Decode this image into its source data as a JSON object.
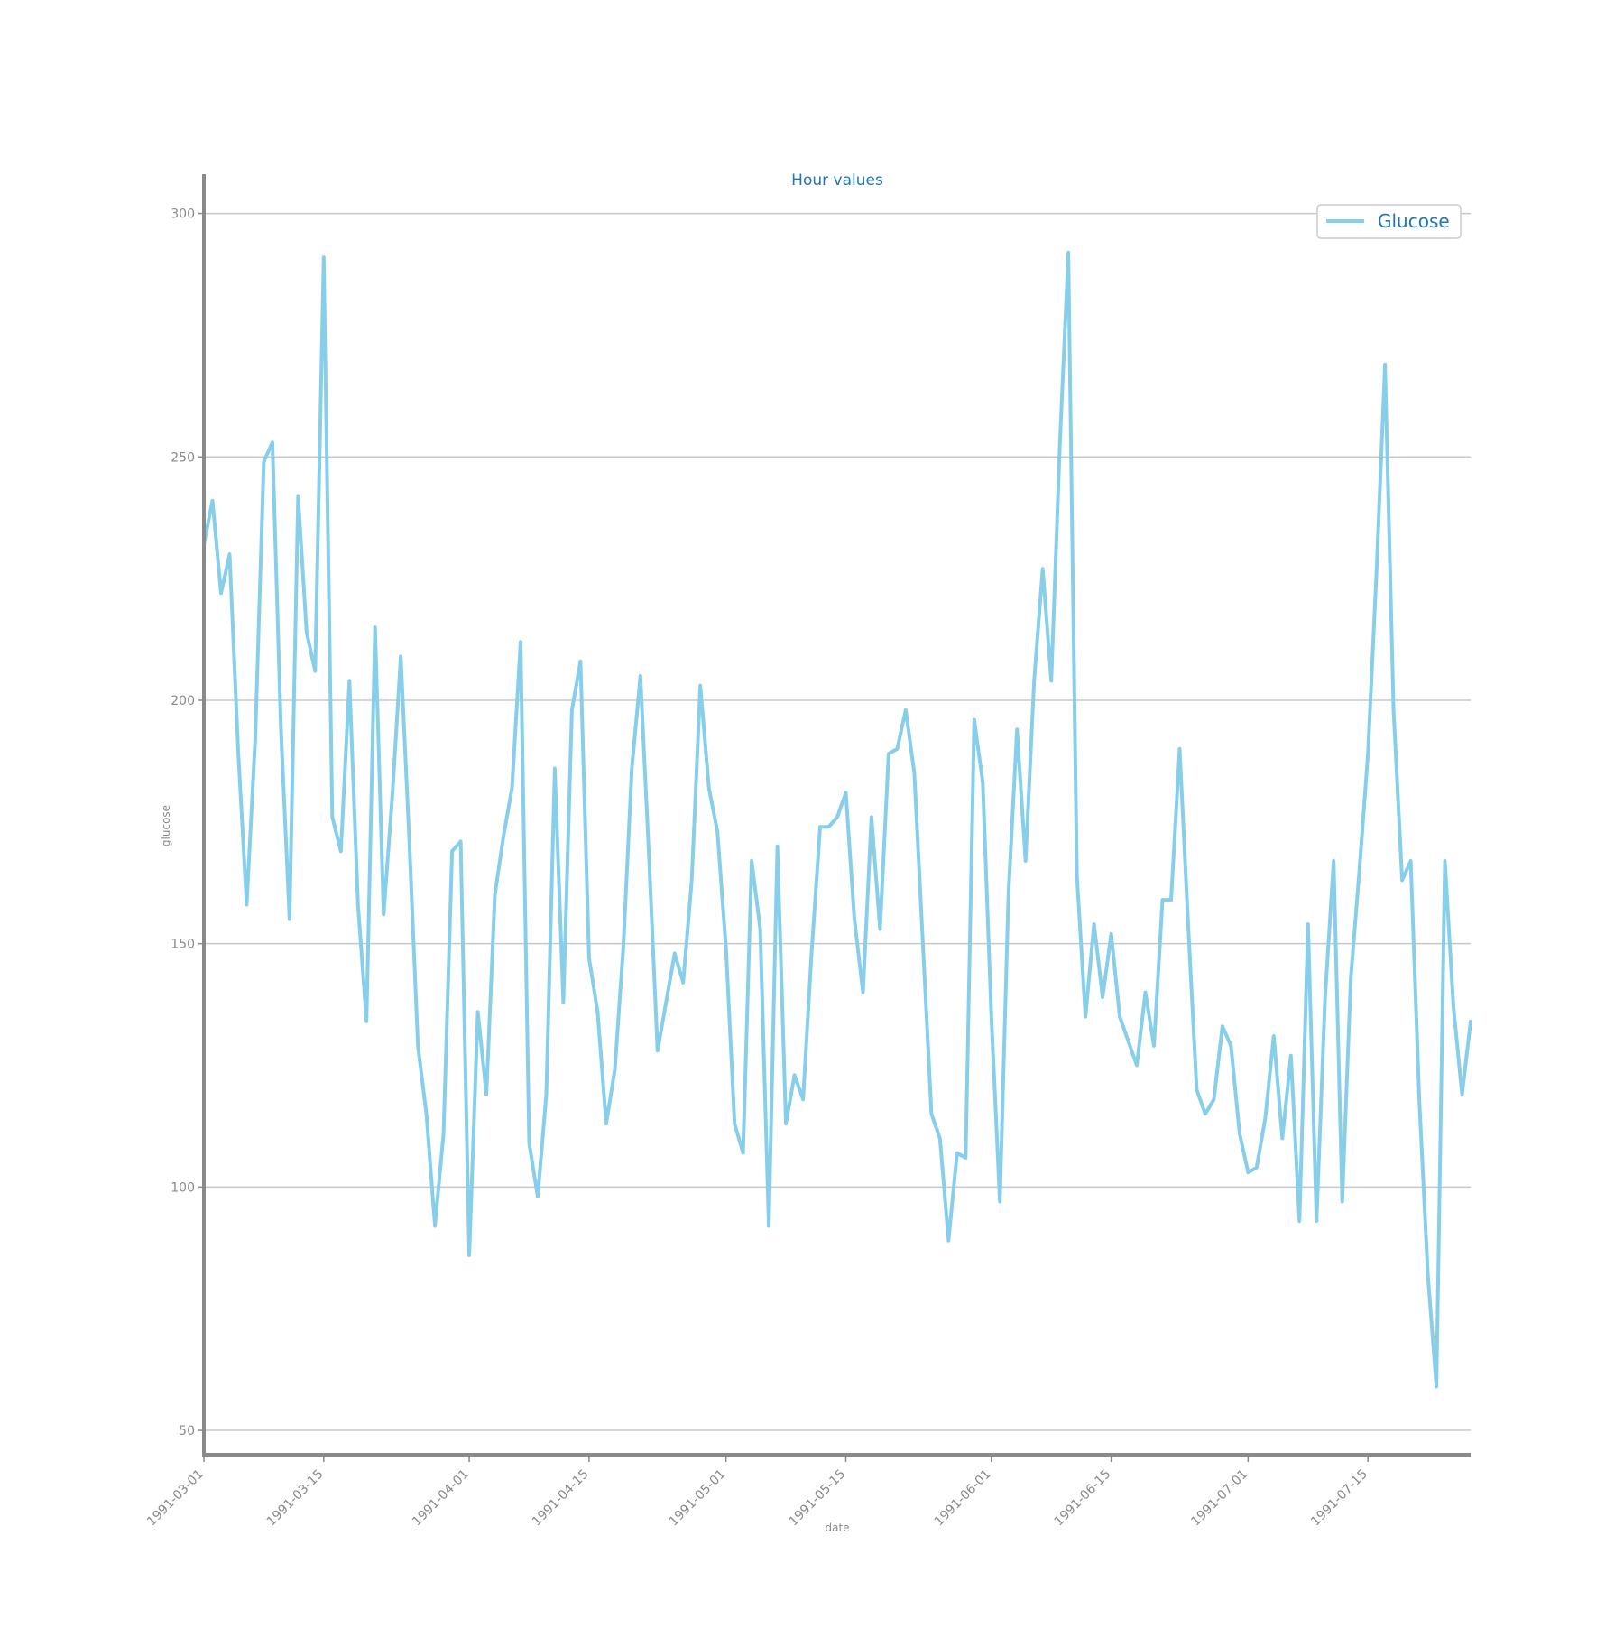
{
  "chart_data": {
    "type": "line",
    "title": "Hour values",
    "xlabel": "date",
    "ylabel": "glucose",
    "ylim": [
      45,
      304
    ],
    "xlim": [
      "1991-03-01",
      "1991-07-27"
    ],
    "y_ticks": [
      50,
      100,
      150,
      200,
      250,
      300
    ],
    "x_ticks": [
      "1991-03-01",
      "1991-03-15",
      "1991-04-01",
      "1991-04-15",
      "1991-05-01",
      "1991-05-15",
      "1991-06-01",
      "1991-06-15",
      "1991-07-01",
      "1991-07-15"
    ],
    "grid": "horizontal",
    "legend_position": "top-right",
    "colors": {
      "series": "#87ceeb",
      "title": "#1f77b4",
      "axis": "#8a8a8a",
      "grid": "#c8c8c8"
    },
    "series": [
      {
        "name": "Glucose",
        "x": [
          "1991-03-01",
          "1991-03-02",
          "1991-03-03",
          "1991-03-04",
          "1991-03-05",
          "1991-03-06",
          "1991-03-07",
          "1991-03-08",
          "1991-03-09",
          "1991-03-10",
          "1991-03-11",
          "1991-03-12",
          "1991-03-13",
          "1991-03-14",
          "1991-03-15",
          "1991-03-16",
          "1991-03-17",
          "1991-03-18",
          "1991-03-19",
          "1991-03-20",
          "1991-03-21",
          "1991-03-22",
          "1991-03-23",
          "1991-03-24",
          "1991-03-25",
          "1991-03-26",
          "1991-03-27",
          "1991-03-28",
          "1991-03-29",
          "1991-03-30",
          "1991-03-31",
          "1991-04-01",
          "1991-04-02",
          "1991-04-03",
          "1991-04-04",
          "1991-04-05",
          "1991-04-06",
          "1991-04-07",
          "1991-04-08",
          "1991-04-09",
          "1991-04-10",
          "1991-04-11",
          "1991-04-12",
          "1991-04-13",
          "1991-04-14",
          "1991-04-15",
          "1991-04-16",
          "1991-04-17",
          "1991-04-18",
          "1991-04-19",
          "1991-04-20",
          "1991-04-21",
          "1991-04-22",
          "1991-04-23",
          "1991-04-24",
          "1991-04-25",
          "1991-04-26",
          "1991-04-27",
          "1991-04-28",
          "1991-04-29",
          "1991-04-30",
          "1991-05-01",
          "1991-05-02",
          "1991-05-03",
          "1991-05-04",
          "1991-05-05",
          "1991-05-06",
          "1991-05-07",
          "1991-05-08",
          "1991-05-09",
          "1991-05-10",
          "1991-05-11",
          "1991-05-12",
          "1991-05-13",
          "1991-05-14",
          "1991-05-15",
          "1991-05-16",
          "1991-05-17",
          "1991-05-18",
          "1991-05-19",
          "1991-05-20",
          "1991-05-21",
          "1991-05-22",
          "1991-05-23",
          "1991-05-24",
          "1991-05-25",
          "1991-05-26",
          "1991-05-27",
          "1991-05-28",
          "1991-05-29",
          "1991-05-30",
          "1991-05-31",
          "1991-06-01",
          "1991-06-02",
          "1991-06-03",
          "1991-06-04",
          "1991-06-05",
          "1991-06-06",
          "1991-06-07",
          "1991-06-08",
          "1991-06-09",
          "1991-06-10",
          "1991-06-11",
          "1991-06-12",
          "1991-06-13",
          "1991-06-14",
          "1991-06-15",
          "1991-06-16",
          "1991-06-17",
          "1991-06-18",
          "1991-06-19",
          "1991-06-20",
          "1991-06-21",
          "1991-06-22",
          "1991-06-23",
          "1991-06-24",
          "1991-06-25",
          "1991-06-26",
          "1991-06-27",
          "1991-06-28",
          "1991-06-29",
          "1991-06-30",
          "1991-07-01",
          "1991-07-02",
          "1991-07-03",
          "1991-07-04",
          "1991-07-05",
          "1991-07-06",
          "1991-07-07",
          "1991-07-08",
          "1991-07-09",
          "1991-07-10",
          "1991-07-11",
          "1991-07-12",
          "1991-07-13",
          "1991-07-14",
          "1991-07-15",
          "1991-07-16",
          "1991-07-17",
          "1991-07-18",
          "1991-07-19",
          "1991-07-20",
          "1991-07-21",
          "1991-07-22",
          "1991-07-23",
          "1991-07-24",
          "1991-07-25",
          "1991-07-26",
          "1991-07-27"
        ],
        "y": [
          232,
          241,
          222,
          230,
          190,
          158,
          192,
          249,
          253,
          194,
          155,
          242,
          214,
          206,
          291,
          176,
          169,
          204,
          158,
          134,
          215,
          156,
          180,
          209,
          171,
          129,
          115,
          92,
          111,
          169,
          171,
          86,
          136,
          119,
          160,
          172,
          182,
          212,
          109,
          98,
          119,
          186,
          138,
          198,
          208,
          147,
          136,
          113,
          124,
          149,
          186,
          205,
          168,
          128,
          138,
          148,
          142,
          163,
          203,
          182,
          173,
          149,
          113,
          107,
          167,
          153,
          92,
          170,
          113,
          123,
          118,
          148,
          174,
          174,
          176,
          181,
          155,
          140,
          176,
          153,
          189,
          190,
          198,
          185,
          150,
          115,
          110,
          89,
          107,
          106,
          196,
          183,
          135,
          97,
          160,
          194,
          167,
          204,
          227,
          204,
          252,
          292,
          164,
          135,
          154,
          139,
          152,
          135,
          130,
          125,
          140,
          129,
          159,
          159,
          190,
          154,
          120,
          115,
          118,
          133,
          129,
          111,
          103,
          104,
          114,
          131,
          110,
          127,
          93,
          154,
          93,
          139,
          167,
          97,
          143,
          165,
          189,
          226,
          269,
          198,
          163,
          167,
          118,
          82,
          59,
          167,
          137,
          119,
          134
        ]
      }
    ]
  }
}
